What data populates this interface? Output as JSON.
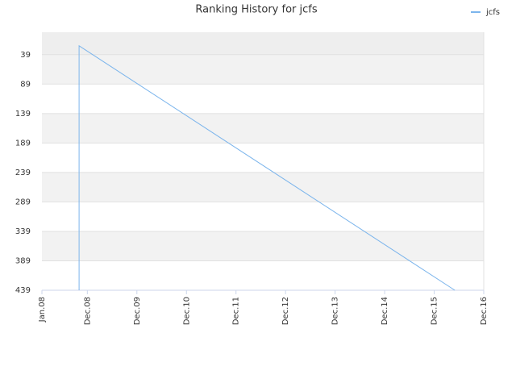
{
  "chart_data": {
    "type": "line",
    "title": "Ranking History for jcfs",
    "x": [
      "2008-10",
      "2008-10",
      "2016-05"
    ],
    "series": [
      {
        "name": "jcfs",
        "color": "#7cb5ec",
        "values": [
          439,
          24,
          439
        ]
      }
    ],
    "xlim": [
      "2008-01",
      "2016-12"
    ],
    "xticks": [
      {
        "value": "2008-01",
        "label": "Jan.08"
      },
      {
        "value": "2008-12",
        "label": "Dec.08"
      },
      {
        "value": "2009-12",
        "label": "Dec.09"
      },
      {
        "value": "2010-12",
        "label": "Dec.10"
      },
      {
        "value": "2011-12",
        "label": "Dec.11"
      },
      {
        "value": "2012-12",
        "label": "Dec.12"
      },
      {
        "value": "2013-12",
        "label": "Dec.13"
      },
      {
        "value": "2014-12",
        "label": "Dec.14"
      },
      {
        "value": "2015-12",
        "label": "Dec.15"
      },
      {
        "value": "2016-12",
        "label": "Dec.16"
      }
    ],
    "ylim": [
      1,
      439
    ],
    "y_inverted": true,
    "yticks": [
      39,
      89,
      139,
      189,
      239,
      289,
      339,
      389,
      439
    ],
    "grid": true,
    "legend": "top-right"
  }
}
